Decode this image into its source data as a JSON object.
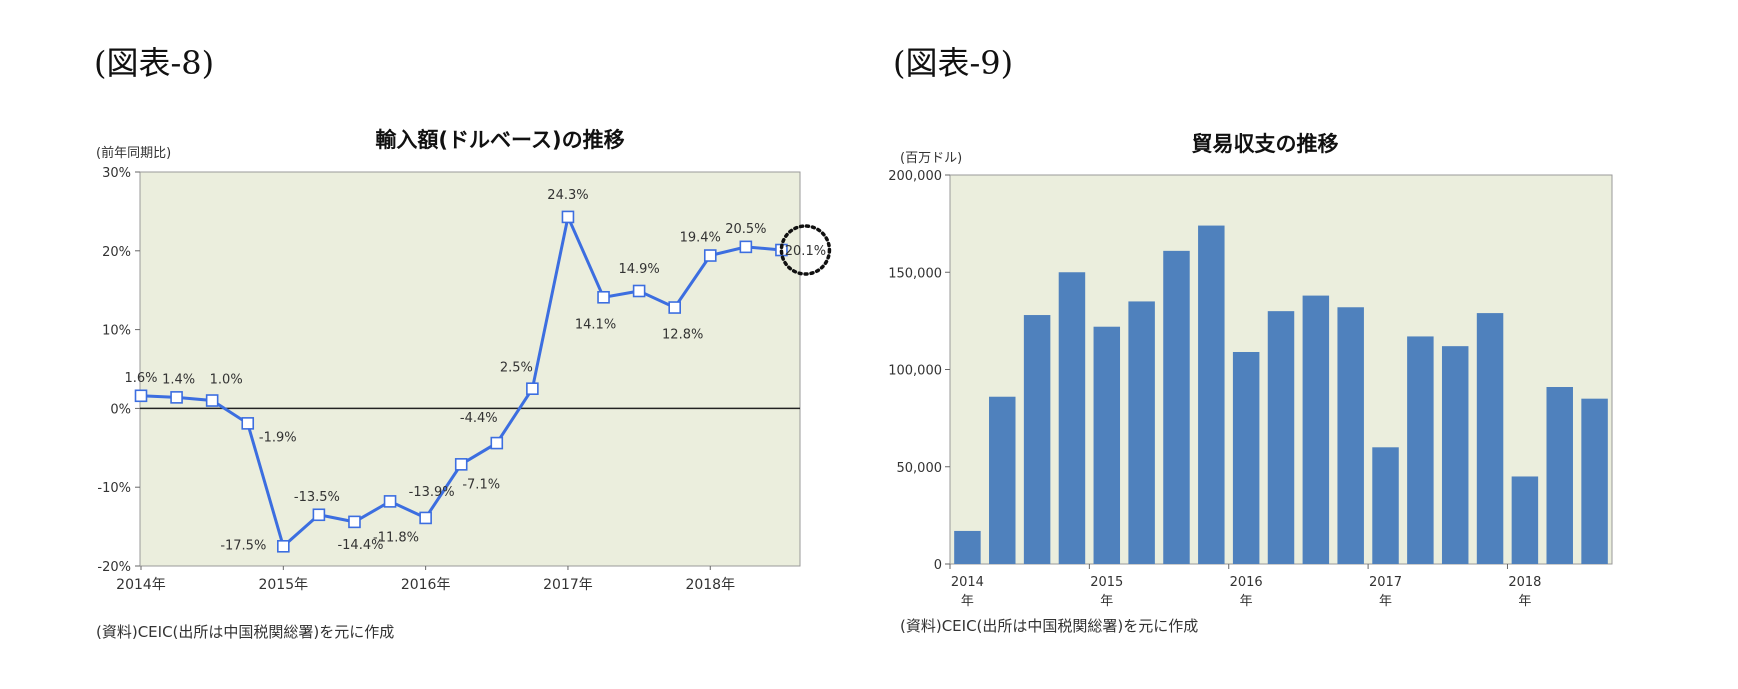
{
  "figures": [
    {
      "label": "(図表-8)",
      "title": "輸入額(ドルベース)の推移",
      "unit": "(前年同期比)",
      "source": "(資料)CEIC(出所は中国税関総署)を元に作成"
    },
    {
      "label": "(図表-9)",
      "title": "貿易収支の推移",
      "unit": "(百万ドル)",
      "source": "(資料)CEIC(出所は中国税関総署)を元に作成"
    }
  ],
  "chart_data": [
    {
      "type": "line",
      "title": "輸入額(ドルベース)の推移",
      "ylabel": "(前年同期比)",
      "ylim": [
        -20,
        30
      ],
      "y_ticks": [
        "30%",
        "20%",
        "10%",
        "0%",
        "-10%",
        "-20%"
      ],
      "x_tick_labels": [
        "2014年",
        "2015年",
        "2016年",
        "2017年",
        "2018年"
      ],
      "x": [
        "2014Q1",
        "2014Q2",
        "2014Q3",
        "2014Q4",
        "2015Q1",
        "2015Q2",
        "2015Q3",
        "2015Q4",
        "2016Q1",
        "2016Q2",
        "2016Q3",
        "2016Q4",
        "2017Q1",
        "2017Q2",
        "2017Q3",
        "2017Q4",
        "2018Q1",
        "2018Q2",
        "2018Q3"
      ],
      "values": [
        1.6,
        1.4,
        1.0,
        -1.9,
        -17.5,
        -13.5,
        -14.4,
        -11.8,
        -13.9,
        -7.1,
        -4.4,
        2.5,
        24.3,
        14.1,
        14.9,
        12.8,
        19.4,
        20.5,
        20.1
      ],
      "data_labels": [
        "1.6%",
        "1.4%",
        "1.0%",
        "-1.9%",
        "-17.5%",
        "-13.5%",
        "-14.4%",
        "-11.8%",
        "-13.9%",
        "-7.1%",
        "-4.4%",
        "2.5%",
        "24.3%",
        "14.1%",
        "14.9%",
        "12.8%",
        "19.4%",
        "20.5%",
        "20.1%"
      ],
      "highlighted_label": "20.1%",
      "line_color": "#3c6ee0",
      "plot_background": "#ebeedd"
    },
    {
      "type": "bar",
      "title": "貿易収支の推移",
      "ylabel": "(百万ドル)",
      "ylim": [
        0,
        200000
      ],
      "y_ticks": [
        "200,000",
        "150,000",
        "100,000",
        "50,000",
        "0"
      ],
      "x_tick_years": [
        "2014",
        "2015",
        "2016",
        "2017",
        "2018"
      ],
      "x_tick_suffix": "年",
      "x": [
        "2014Q1",
        "2014Q2",
        "2014Q3",
        "2014Q4",
        "2015Q1",
        "2015Q2",
        "2015Q3",
        "2015Q4",
        "2016Q1",
        "2016Q2",
        "2016Q3",
        "2016Q4",
        "2017Q1",
        "2017Q2",
        "2017Q3",
        "2017Q4",
        "2018Q1",
        "2018Q2",
        "2018Q3"
      ],
      "values": [
        17000,
        86000,
        128000,
        150000,
        122000,
        135000,
        161000,
        174000,
        109000,
        130000,
        138000,
        132000,
        60000,
        117000,
        112000,
        129000,
        45000,
        91000,
        85000
      ],
      "bar_color": "#4f81bd",
      "plot_background": "#ebeedd"
    }
  ]
}
